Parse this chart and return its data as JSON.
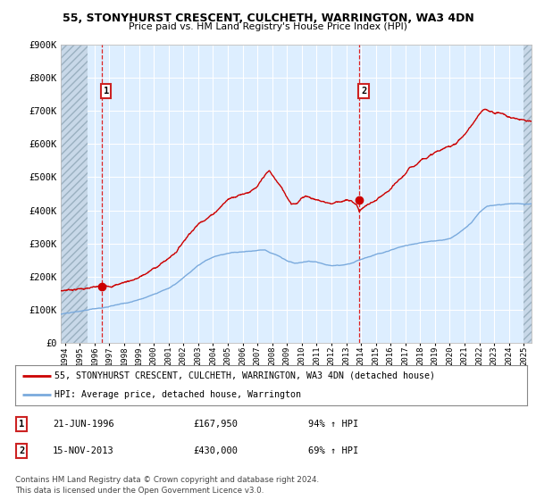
{
  "title1": "55, STONYHURST CRESCENT, CULCHETH, WARRINGTON, WA3 4DN",
  "title2": "Price paid vs. HM Land Registry's House Price Index (HPI)",
  "plot_bg_color": "#ddeeff",
  "hatch_bg_color": "#c8d8e8",
  "red_line_color": "#cc0000",
  "blue_line_color": "#7aaadd",
  "dashed_line_color": "#dd2222",
  "marker_color": "#cc0000",
  "grid_color": "#ffffff",
  "sale1_date": 1996.47,
  "sale1_price": 167950,
  "sale2_date": 2013.88,
  "sale2_price": 430000,
  "legend1": "55, STONYHURST CRESCENT, CULCHETH, WARRINGTON, WA3 4DN (detached house)",
  "legend2": "HPI: Average price, detached house, Warrington",
  "table_row1_num": "1",
  "table_row1_date": "21-JUN-1996",
  "table_row1_price": "£167,950",
  "table_row1_hpi": "94% ↑ HPI",
  "table_row2_num": "2",
  "table_row2_date": "15-NOV-2013",
  "table_row2_price": "£430,000",
  "table_row2_hpi": "69% ↑ HPI",
  "footer": "Contains HM Land Registry data © Crown copyright and database right 2024.\nThis data is licensed under the Open Government Licence v3.0.",
  "xmin": 1993.7,
  "xmax": 2025.5,
  "ymin": 0,
  "ymax": 900000,
  "yticks": [
    0,
    100000,
    200000,
    300000,
    400000,
    500000,
    600000,
    700000,
    800000,
    900000
  ],
  "ytick_labels": [
    "£0",
    "£100K",
    "£200K",
    "£300K",
    "£400K",
    "£500K",
    "£600K",
    "£700K",
    "£800K",
    "£900K"
  ]
}
